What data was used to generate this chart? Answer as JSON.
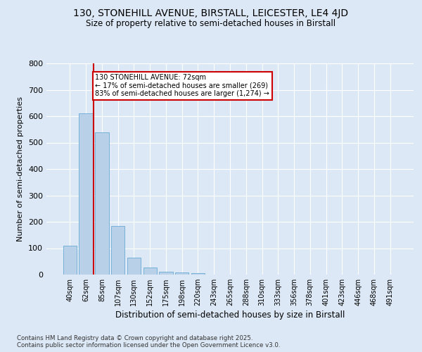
{
  "title1": "130, STONEHILL AVENUE, BIRSTALL, LEICESTER, LE4 4JD",
  "title2": "Size of property relative to semi-detached houses in Birstall",
  "xlabel": "Distribution of semi-detached houses by size in Birstall",
  "ylabel": "Number of semi-detached properties",
  "footnote1": "Contains HM Land Registry data © Crown copyright and database right 2025.",
  "footnote2": "Contains public sector information licensed under the Open Government Licence v3.0.",
  "bar_labels": [
    "40sqm",
    "62sqm",
    "85sqm",
    "107sqm",
    "130sqm",
    "152sqm",
    "175sqm",
    "198sqm",
    "220sqm",
    "243sqm",
    "265sqm",
    "288sqm",
    "310sqm",
    "333sqm",
    "356sqm",
    "378sqm",
    "401sqm",
    "423sqm",
    "446sqm",
    "468sqm",
    "491sqm"
  ],
  "bar_values": [
    110,
    610,
    540,
    185,
    65,
    28,
    12,
    8,
    5,
    0,
    0,
    0,
    0,
    0,
    0,
    0,
    0,
    0,
    0,
    0,
    0
  ],
  "bar_color": "#b8d0e8",
  "bar_edgecolor": "#6aaad4",
  "property_line_x": 1.48,
  "property_sqm": 72,
  "property_label": "130 STONEHILL AVENUE: 72sqm",
  "pct_smaller": 17,
  "pct_larger": 83,
  "n_smaller": 269,
  "n_larger": 1274,
  "annotation_box_color": "#ffffff",
  "annotation_box_edgecolor": "#cc0000",
  "red_line_color": "#cc0000",
  "ylim": [
    0,
    800
  ],
  "yticks": [
    0,
    100,
    200,
    300,
    400,
    500,
    600,
    700,
    800
  ],
  "bg_color": "#dce8f5",
  "grid_color": "#ffffff",
  "title1_fontsize": 10,
  "title2_fontsize": 9
}
